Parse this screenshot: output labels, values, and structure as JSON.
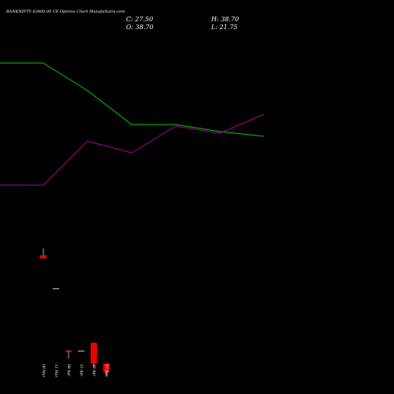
{
  "header": {
    "title": "BANKNIFTY 63400.00 CE Options Chart MunafaSutra.com",
    "close_label": "C: 27.50",
    "high_label": "H: 38.70",
    "open_label": "O: 38.70",
    "low_label": "L: 21.75"
  },
  "chart_data": {
    "type": "candlestick",
    "categories": [
      "09 Mar",
      "11 Mar",
      "08 Apr",
      "15 Apr",
      "16 Apr",
      "17 Apr"
    ],
    "candles": [
      {
        "date": "09 Mar",
        "open": 176,
        "high": 185,
        "low": 172,
        "close": 172
      },
      {
        "date": "11 Mar",
        "open": 134,
        "high": 134,
        "low": 134,
        "close": 134
      },
      {
        "date": "08 Apr",
        "open": 55,
        "high": 56,
        "low": 45,
        "close": 53
      },
      {
        "date": "15 Apr",
        "open": 55,
        "high": 55,
        "low": 55,
        "close": 55
      },
      {
        "date": "16 Apr",
        "open": 65,
        "high": 65,
        "low": 34,
        "close": 39
      },
      {
        "date": "17 Apr",
        "open": 38.7,
        "high": 38.7,
        "low": 21.75,
        "close": 27.5
      }
    ],
    "ylim": [
      0,
      500
    ],
    "overlays": [
      {
        "color": "#00cc00",
        "points": [
          [
            -1,
            420
          ],
          [
            0,
            420
          ],
          [
            1,
            385
          ],
          [
            2,
            342
          ],
          [
            3,
            342
          ],
          [
            4,
            333
          ],
          [
            5,
            327
          ]
        ]
      },
      {
        "color": "#aa00aa",
        "points": [
          [
            -1,
            265
          ],
          [
            0,
            265
          ],
          [
            1,
            321
          ],
          [
            2,
            306
          ],
          [
            3,
            340
          ],
          [
            4,
            331
          ],
          [
            5,
            355
          ]
        ]
      }
    ],
    "colors": {
      "up": "#00ee00",
      "down": "#ee0000",
      "flat": "#cccccc",
      "background": "#000000"
    }
  }
}
